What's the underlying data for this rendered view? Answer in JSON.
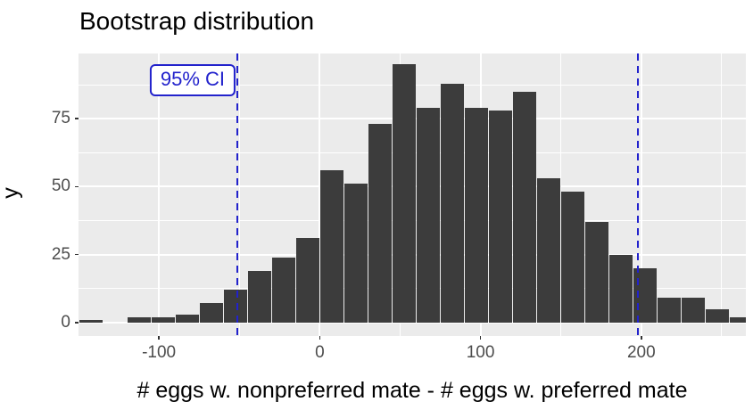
{
  "chart_data": {
    "type": "bar",
    "subtype": "histogram",
    "title": "Bootstrap distribution",
    "xlabel": "# eggs w. nonpreferred mate - # eggs w. preferred mate",
    "ylabel": "y",
    "bin_width": 15,
    "bin_centers": [
      -142.5,
      -127.5,
      -112.5,
      -97.5,
      -82.5,
      -67.5,
      -52.5,
      -37.5,
      -22.5,
      -7.5,
      7.5,
      22.5,
      37.5,
      52.5,
      67.5,
      82.5,
      97.5,
      112.5,
      127.5,
      142.5,
      157.5,
      172.5,
      187.5,
      202.5,
      217.5,
      232.5,
      247.5,
      262.5
    ],
    "counts": [
      1,
      0,
      2,
      2,
      3,
      7,
      12,
      19,
      24,
      31,
      56,
      51,
      73,
      95,
      79,
      88,
      79,
      78,
      85,
      53,
      48,
      37,
      25,
      20,
      9,
      9,
      5,
      2
    ],
    "xlim": [
      -150,
      265
    ],
    "ylim": [
      -5,
      99
    ],
    "x_tick_values": [
      -100,
      0,
      100,
      200
    ],
    "y_tick_values": [
      0,
      25,
      50,
      75
    ],
    "x_minor_gridlines": [
      -50,
      50,
      150,
      250
    ],
    "y_minor_gridlines": [
      12.5,
      37.5,
      62.5,
      87.5
    ],
    "grid": true,
    "legend": "none",
    "ci": {
      "label": "95% CI",
      "lower": -51,
      "upper": 198,
      "annotation_x": -79,
      "annotation_y": 89
    },
    "colors": {
      "bar_fill": "#3C3C3C",
      "panel_background": "#EBEBEB",
      "gridline": "#FFFFFF",
      "ci_line": "#2222CC",
      "tick_label": "#4D4D4D",
      "axis_text": "#000000"
    }
  }
}
